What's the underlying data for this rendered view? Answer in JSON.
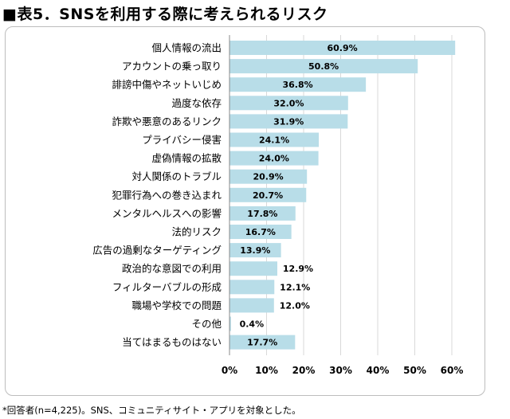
{
  "title": "■表5．SNSを利用する際に考えられるリスク",
  "footnote": "*回答者(n=4,225)。SNS、コミュニティサイト・アプリを対象とした。",
  "colors": {
    "bar": "#b8dde8",
    "grid": "#d9d9d9",
    "frame": "#bdbdbd",
    "axis": "#888888"
  },
  "chart_data": {
    "type": "bar",
    "orientation": "horizontal",
    "title": "■表5．SNSを利用する際に考えられるリスク",
    "categories": [
      "個人情報の流出",
      "アカウントの乗っ取り",
      "誹謗中傷やネットいじめ",
      "過度な依存",
      "詐欺や悪意のあるリンク",
      "プライバシー侵害",
      "虚偽情報の拡散",
      "対人関係のトラブル",
      "犯罪行為への巻き込まれ",
      "メンタルヘルスへの影響",
      "法的リスク",
      "広告の過剰なターゲティング",
      "政治的な意図での利用",
      "フィルターバブルの形成",
      "職場や学校での問題",
      "その他",
      "当てはまるものはない"
    ],
    "values": [
      60.9,
      50.8,
      36.8,
      32.0,
      31.9,
      24.1,
      24.0,
      20.9,
      20.7,
      17.8,
      16.7,
      13.9,
      12.9,
      12.1,
      12.0,
      0.4,
      17.7
    ],
    "value_labels": [
      "60.9%",
      "50.8%",
      "36.8%",
      "32.0%",
      "31.9%",
      "24.1%",
      "24.0%",
      "20.9%",
      "20.7%",
      "17.8%",
      "16.7%",
      "13.9%",
      "12.9%",
      "12.1%",
      "12.0%",
      "0.4%",
      "17.7%"
    ],
    "xticks": [
      "0%",
      "10%",
      "20%",
      "30%",
      "40%",
      "50%",
      "60%"
    ],
    "xlim": [
      0,
      65
    ],
    "xlabel": "",
    "ylabel": "",
    "grid": true
  }
}
